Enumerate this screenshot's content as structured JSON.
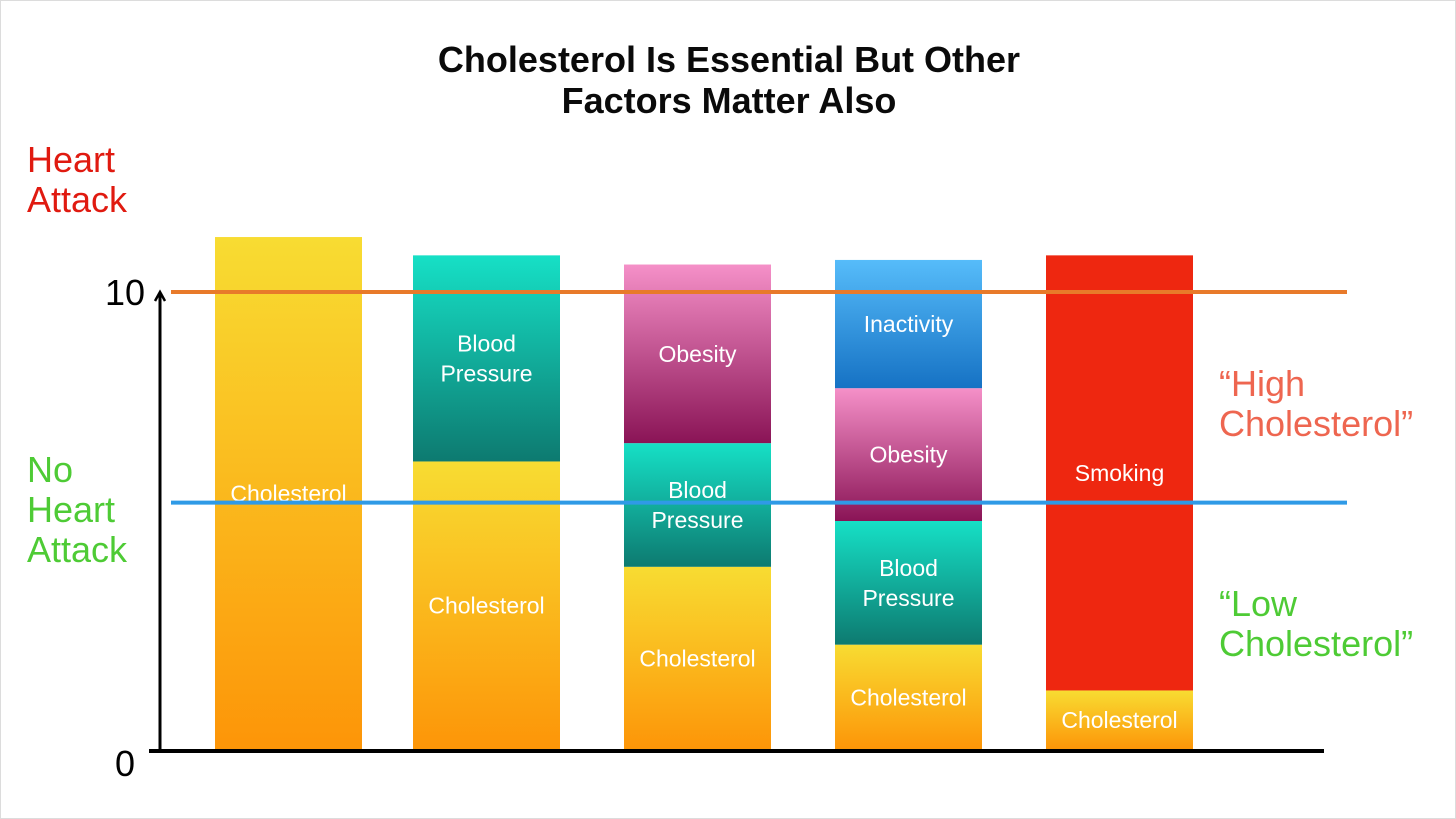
{
  "chart_data": {
    "type": "bar",
    "stacked": true,
    "title": [
      "Cholesterol Is Essential But Other",
      "Factors Matter Also"
    ],
    "ylim": [
      0,
      10
    ],
    "yticks": [
      "0",
      "10"
    ],
    "reference_lines": [
      {
        "value": 10,
        "color": "#e87a2a",
        "labels": [
          "Heart",
          "Attack"
        ],
        "side_labels": [
          "“High",
          "Cholesterol”"
        ]
      },
      {
        "value": 5.4,
        "color": "#2f9ae6",
        "labels": [
          "No",
          "Heart",
          "Attack"
        ],
        "side_labels": [
          "“Low",
          "Cholesterol”"
        ]
      }
    ],
    "bars": [
      {
        "segments": [
          {
            "label": "Cholesterol",
            "value": 11.2
          }
        ]
      },
      {
        "segments": [
          {
            "label": "Cholesterol",
            "value": 6.3
          },
          {
            "label": "Blood Pressure",
            "value": 4.5
          }
        ]
      },
      {
        "segments": [
          {
            "label": "Cholesterol",
            "value": 4.0
          },
          {
            "label": "Blood Pressure",
            "value": 2.7
          },
          {
            "label": "Obesity",
            "value": 3.9
          }
        ]
      },
      {
        "segments": [
          {
            "label": "Cholesterol",
            "value": 2.3
          },
          {
            "label": "Blood Pressure",
            "value": 2.7
          },
          {
            "label": "Obesity",
            "value": 2.9
          },
          {
            "label": "Inactivity",
            "value": 2.8
          }
        ]
      },
      {
        "segments": [
          {
            "label": "Cholesterol",
            "value": 1.3
          },
          {
            "label": "Smoking",
            "value": 9.5
          }
        ]
      }
    ],
    "segment_colors": {
      "Cholesterol": [
        "#f8dc32",
        "#fd9508"
      ],
      "Blood Pressure": [
        "#16e0c6",
        "#0d7a70"
      ],
      "Obesity": [
        "#f590c8",
        "#8a1456"
      ],
      "Inactivity": [
        "#56bcfa",
        "#1672c4"
      ],
      "Smoking": [
        "#ee2710",
        "#ee2710"
      ]
    }
  }
}
